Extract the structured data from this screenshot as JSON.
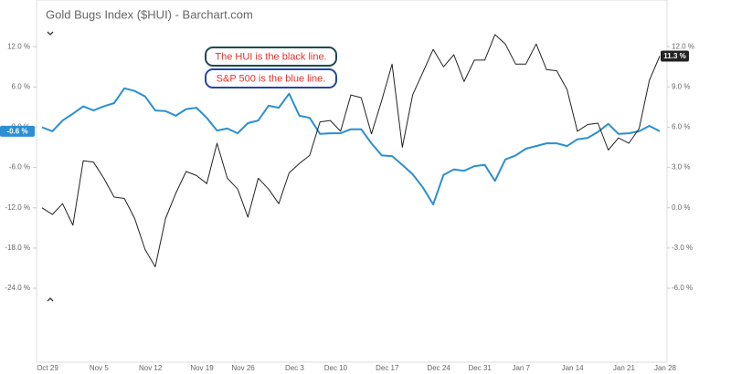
{
  "chart_data": {
    "type": "line",
    "title": "Gold Bugs Index ($HUI) - Barchart.com",
    "categories": [
      "Oct 29",
      null,
      null,
      null,
      null,
      "Nov 5",
      null,
      null,
      null,
      null,
      "Nov 12",
      null,
      null,
      null,
      null,
      "Nov 19",
      null,
      null,
      null,
      "Nov 26",
      null,
      null,
      null,
      null,
      "Dec 3",
      null,
      null,
      null,
      "Dec 10",
      null,
      null,
      null,
      null,
      "Dec 17",
      null,
      null,
      null,
      null,
      "Dec 24",
      null,
      null,
      null,
      "Dec 31",
      null,
      null,
      null,
      "Jan 7",
      null,
      null,
      null,
      null,
      "Jan 14",
      null,
      null,
      null,
      null,
      "Jan 21",
      null,
      null,
      null,
      "Jan 28"
    ],
    "series": [
      {
        "color": "#2b8fd1",
        "values": [
          0,
          -0.6,
          1.0,
          2.0,
          3.1,
          2.5,
          3.1,
          3.6,
          5.8,
          5.4,
          4.6,
          2.5,
          2.4,
          1.7,
          2.7,
          2.9,
          1.4,
          -0.5,
          -0.2,
          -0.9,
          0.6,
          1.0,
          3.2,
          2.9,
          5.0,
          1.7,
          1.4,
          -1.0,
          -0.9,
          -0.9,
          -0.3,
          -0.3,
          -2.4,
          -4.2,
          -4.3,
          -5.6,
          -7.0,
          -9.0,
          -11.5,
          -7.1,
          -6.3,
          -6.5,
          -5.8,
          -5.6,
          -8.0,
          -4.8,
          -4.2,
          -3.2,
          -2.8,
          -2.4,
          -2.4,
          -2.8,
          -1.8,
          -1.6,
          -0.7,
          0.5,
          -1.0,
          -0.9,
          -0.6,
          0.2,
          -0.6
        ],
        "value_labels": [
          null,
          null,
          null,
          null,
          null,
          null,
          null,
          null,
          null,
          null,
          null,
          null,
          null,
          null,
          null,
          null,
          null,
          null,
          null,
          null,
          null,
          null,
          null,
          null,
          null,
          null,
          null,
          null,
          null,
          null,
          null,
          null,
          null,
          null,
          null,
          null,
          null,
          null,
          null,
          null,
          null,
          null,
          null,
          null,
          null,
          null,
          null,
          null,
          null,
          null,
          null,
          null,
          null,
          null,
          null,
          null,
          null,
          null,
          null,
          null,
          "-0.6 %"
        ]
      },
      {
        "color": "#222222",
        "axis": "y2",
        "values": [
          0,
          -0.5,
          0.3,
          -1.3,
          3.5,
          3.4,
          2.2,
          0.8,
          0.7,
          -0.8,
          -3.1,
          -4.4,
          -0.8,
          1.1,
          2.7,
          2.4,
          1.8,
          4.8,
          2.2,
          1.4,
          -0.7,
          2.2,
          1.4,
          0.3,
          2.6,
          3.3,
          3.9,
          6.4,
          6.5,
          5.7,
          8.4,
          8.2,
          5.5,
          8.0,
          10.7,
          4.5,
          8.4,
          10.1,
          11.8,
          10.5,
          11.4,
          9.4,
          11.0,
          11.0,
          12.9,
          12.2,
          10.7,
          10.7,
          12.2,
          10.3,
          10.2,
          8.8,
          5.7,
          6.2,
          6.3,
          4.3,
          5.2,
          4.8,
          5.9,
          9.5,
          11.3
        ],
        "value_labels": [
          null,
          null,
          null,
          null,
          null,
          null,
          null,
          null,
          null,
          null,
          null,
          null,
          null,
          null,
          null,
          null,
          null,
          null,
          null,
          null,
          null,
          null,
          null,
          null,
          null,
          null,
          null,
          null,
          null,
          null,
          null,
          null,
          null,
          null,
          null,
          null,
          null,
          null,
          null,
          null,
          null,
          null,
          null,
          null,
          null,
          null,
          null,
          null,
          null,
          null,
          null,
          null,
          null,
          null,
          null,
          null,
          null,
          null,
          null,
          null,
          "11.3 %"
        ]
      }
    ],
    "ylim": [
      -35,
      18
    ],
    "yticks": [
      {
        "value": 12,
        "label": "12.0 %"
      },
      {
        "value": 6,
        "label": "6.0 %"
      },
      {
        "value": 0,
        "label": "0.0 %"
      },
      {
        "value": -6,
        "label": "-6.0 %"
      },
      {
        "value": -12,
        "label": "-12.0 %"
      },
      {
        "value": -18,
        "label": "-18.0 %"
      },
      {
        "value": -24,
        "label": "-24.0 %"
      }
    ],
    "y2lim": [
      -11.5,
      15
    ],
    "y2ticks": [
      {
        "value": 12,
        "label": "12.0 %"
      },
      {
        "value": 9,
        "label": "9.0 %"
      },
      {
        "value": 6,
        "label": "6.0 %"
      },
      {
        "value": 3,
        "label": "3.0 %"
      },
      {
        "value": 0,
        "label": "0.0 %"
      },
      {
        "value": -3,
        "label": "-3.0 %"
      },
      {
        "value": -6,
        "label": "-6.0 %"
      }
    ],
    "grid": false,
    "annotations": [
      {
        "text": "The HUI is the black line.",
        "border": "#1d4b4f",
        "color": "#e8302c"
      },
      {
        "text": "S&P 500 is the blue line.",
        "border": "#2346a8",
        "color": "#e8302c"
      }
    ]
  }
}
